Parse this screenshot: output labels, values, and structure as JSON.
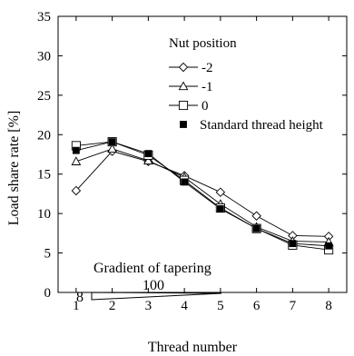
{
  "chart_data": {
    "type": "line",
    "xlabel": "Thread number",
    "ylabel": "Load share rate [%]",
    "xlim": [
      0.5,
      8.5
    ],
    "ylim": [
      0,
      35
    ],
    "xticks": [
      1,
      2,
      3,
      4,
      5,
      6,
      7,
      8
    ],
    "yticks": [
      0,
      5,
      10,
      15,
      20,
      25,
      30,
      35
    ],
    "grid": false,
    "legend_title": "Nut position",
    "legend_position": "top-right",
    "x": [
      1,
      2,
      3,
      4,
      5,
      6,
      7,
      8
    ],
    "series": [
      {
        "name": "-2",
        "marker": "diamond-open",
        "values": [
          12.9,
          17.9,
          16.6,
          14.8,
          12.7,
          9.7,
          7.2,
          7.1
        ]
      },
      {
        "name": "-1",
        "marker": "triangle-open",
        "values": [
          16.6,
          18.2,
          16.7,
          14.6,
          11.2,
          8.3,
          6.5,
          6.4
        ]
      },
      {
        "name": "0",
        "marker": "square-open",
        "values": [
          18.6,
          19.1,
          17.4,
          14.2,
          10.7,
          8.1,
          6.0,
          5.4
        ]
      },
      {
        "name": "Standard thread height",
        "marker": "square-filled",
        "values": [
          18.0,
          19.1,
          17.6,
          14.0,
          10.6,
          8.1,
          6.2,
          5.9
        ]
      }
    ],
    "annotations": {
      "title": "Gradient of tapering",
      "left_value": "8",
      "right_value": "100"
    }
  }
}
